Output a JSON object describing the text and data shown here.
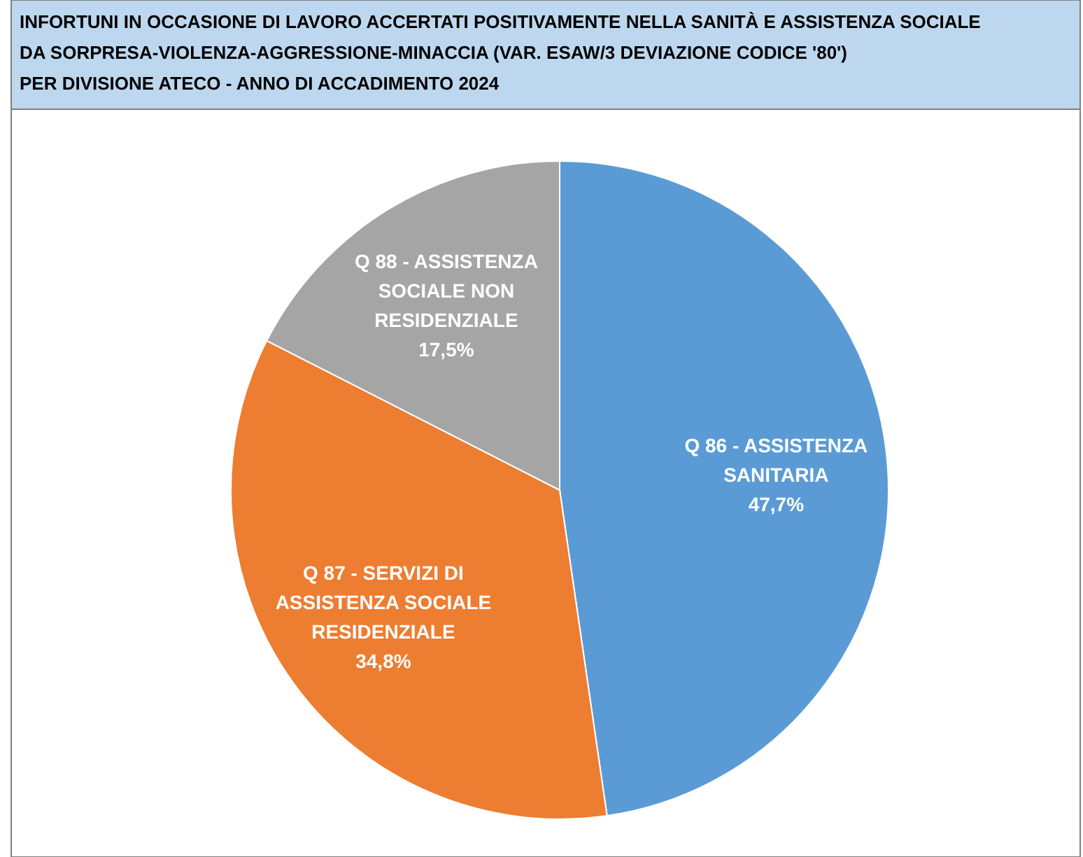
{
  "chart_data": {
    "type": "pie",
    "title": "INFORTUNI IN OCCASIONE DI LAVORO ACCERTATI POSITIVAMENTE NELLA SANITÀ E ASSISTENZA SOCIALE\nDA SORPRESA-VIOLENZA-AGGRESSIONE-MINACCIA (VAR. ESAW/3 DEVIAZIONE CODICE '80')\nPER DIVISIONE ATECO - ANNO DI ACCADIMENTO 2024",
    "categories": [
      "Q 86 - ASSISTENZA SANITARIA",
      "Q 87 - SERVIZI DI ASSISTENZA SOCIALE RESIDENZIALE",
      "Q 88 - ASSISTENZA SOCIALE NON RESIDENZIALE"
    ],
    "values": [
      47.7,
      34.8,
      17.5
    ],
    "value_labels": [
      "47,7%",
      "34,8%",
      "17,5%"
    ],
    "colors": [
      "#5b9bd5",
      "#ed7d31",
      "#a5a5a5"
    ]
  }
}
